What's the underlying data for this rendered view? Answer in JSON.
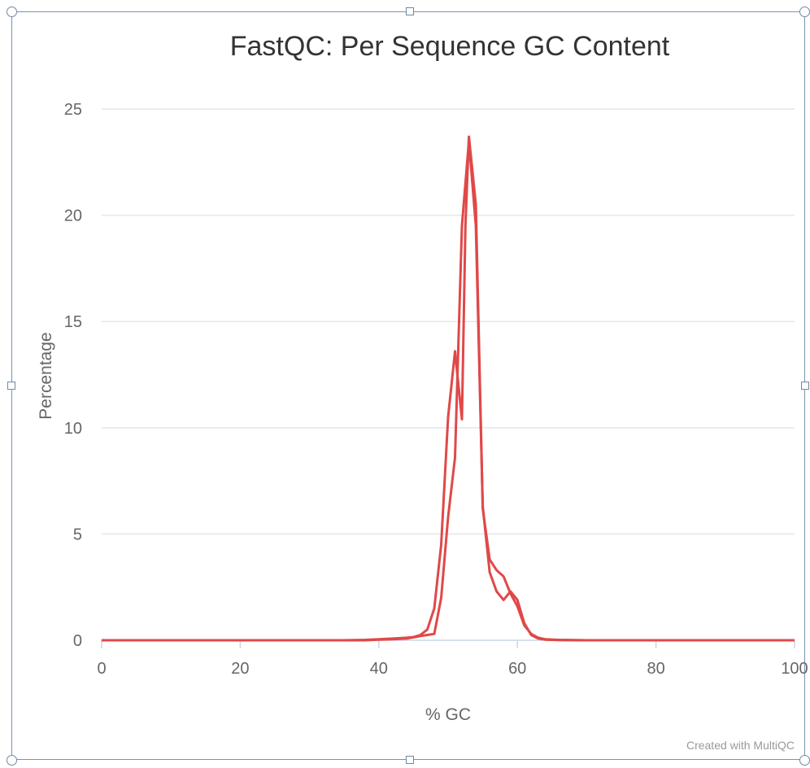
{
  "chart_data": {
    "type": "line",
    "title": "FastQC: Per Sequence GC Content",
    "xlabel": "% GC",
    "ylabel": "Percentage",
    "xlim": [
      0,
      100
    ],
    "ylim": [
      0,
      25
    ],
    "x_ticks": [
      "0",
      "20",
      "40",
      "60",
      "80",
      "100"
    ],
    "y_ticks": [
      "0",
      "5",
      "10",
      "15",
      "20",
      "25"
    ],
    "grid": true,
    "legend": "none",
    "credit": "Created with MultiQC",
    "line_color": "#e04848",
    "series": [
      {
        "points": [
          [
            0,
            0
          ],
          [
            10,
            0
          ],
          [
            20,
            0
          ],
          [
            30,
            0
          ],
          [
            35,
            0
          ],
          [
            38,
            0.02
          ],
          [
            40,
            0.05
          ],
          [
            42,
            0.08
          ],
          [
            44,
            0.12
          ],
          [
            45,
            0.15
          ],
          [
            46,
            0.25
          ],
          [
            47,
            0.5
          ],
          [
            48,
            1.5
          ],
          [
            49,
            4.5
          ],
          [
            50,
            10.5
          ],
          [
            51,
            13.6
          ],
          [
            52,
            10.4
          ],
          [
            52.5,
            19.5
          ],
          [
            53,
            23.7
          ],
          [
            54,
            20.5
          ],
          [
            55,
            6.2
          ],
          [
            56,
            3.8
          ],
          [
            57,
            3.3
          ],
          [
            58,
            3.0
          ],
          [
            59,
            2.2
          ],
          [
            60,
            1.6
          ],
          [
            61,
            0.7
          ],
          [
            62,
            0.3
          ],
          [
            63,
            0.12
          ],
          [
            64,
            0.05
          ],
          [
            66,
            0.02
          ],
          [
            70,
            0
          ],
          [
            80,
            0
          ],
          [
            90,
            0
          ],
          [
            100,
            0
          ]
        ]
      },
      {
        "points": [
          [
            0,
            0
          ],
          [
            10,
            0
          ],
          [
            20,
            0
          ],
          [
            30,
            0
          ],
          [
            38,
            0
          ],
          [
            40,
            0.03
          ],
          [
            42,
            0.05
          ],
          [
            44,
            0.08
          ],
          [
            46,
            0.2
          ],
          [
            47,
            0.25
          ],
          [
            48,
            0.3
          ],
          [
            49,
            2.0
          ],
          [
            50,
            5.8
          ],
          [
            51,
            8.6
          ],
          [
            52,
            19.5
          ],
          [
            53,
            23.5
          ],
          [
            54,
            19.5
          ],
          [
            55,
            6.3
          ],
          [
            56,
            3.2
          ],
          [
            57,
            2.3
          ],
          [
            58,
            1.9
          ],
          [
            59,
            2.3
          ],
          [
            60,
            1.9
          ],
          [
            61,
            0.8
          ],
          [
            62,
            0.25
          ],
          [
            63,
            0.08
          ],
          [
            64,
            0.03
          ],
          [
            66,
            0.01
          ],
          [
            70,
            0
          ],
          [
            80,
            0
          ],
          [
            90,
            0
          ],
          [
            100,
            0
          ]
        ]
      }
    ]
  }
}
